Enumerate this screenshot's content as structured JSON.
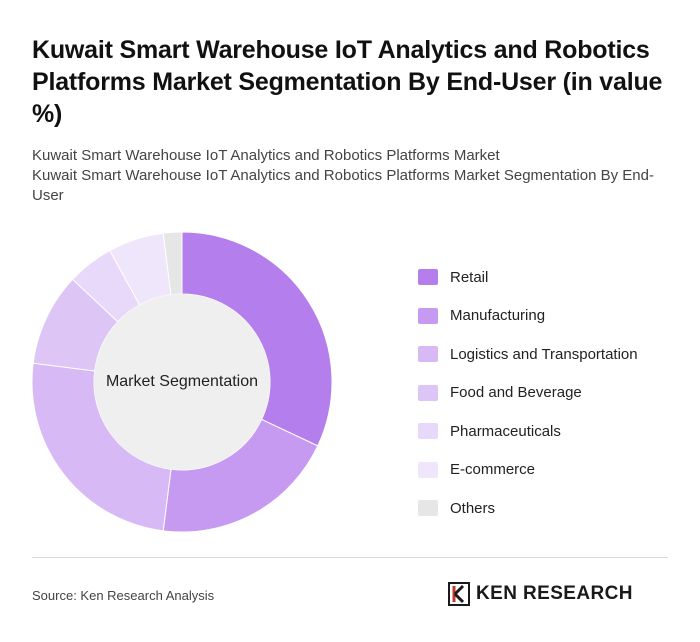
{
  "header": {
    "title": "Kuwait Smart Warehouse IoT Analytics and Robotics Platforms Market Segmentation By End-User (in value %)",
    "subtitle_line1": "Kuwait Smart Warehouse IoT Analytics and Robotics Platforms Market",
    "subtitle_line2": "Kuwait Smart Warehouse IoT Analytics and Robotics Platforms Market Segmentation By End-User"
  },
  "chart_data": {
    "type": "pie",
    "donut": true,
    "center_label": "Market Segmentation",
    "categories": [
      "Retail",
      "Manufacturing",
      "Logistics and Transportation",
      "Food and Beverage",
      "Pharmaceuticals",
      "E-commerce",
      "Others"
    ],
    "values": [
      32,
      20,
      25,
      10,
      5,
      6,
      2
    ],
    "colors": [
      "#b47fec",
      "#c69af1",
      "#d6b9f5",
      "#ddc6f6",
      "#e8d8f9",
      "#f0e6fb",
      "#e6e6e6"
    ],
    "legend_position": "right"
  },
  "footer": {
    "source": "Source: Ken Research Analysis",
    "logo_text": "KEN RESEARCH"
  }
}
